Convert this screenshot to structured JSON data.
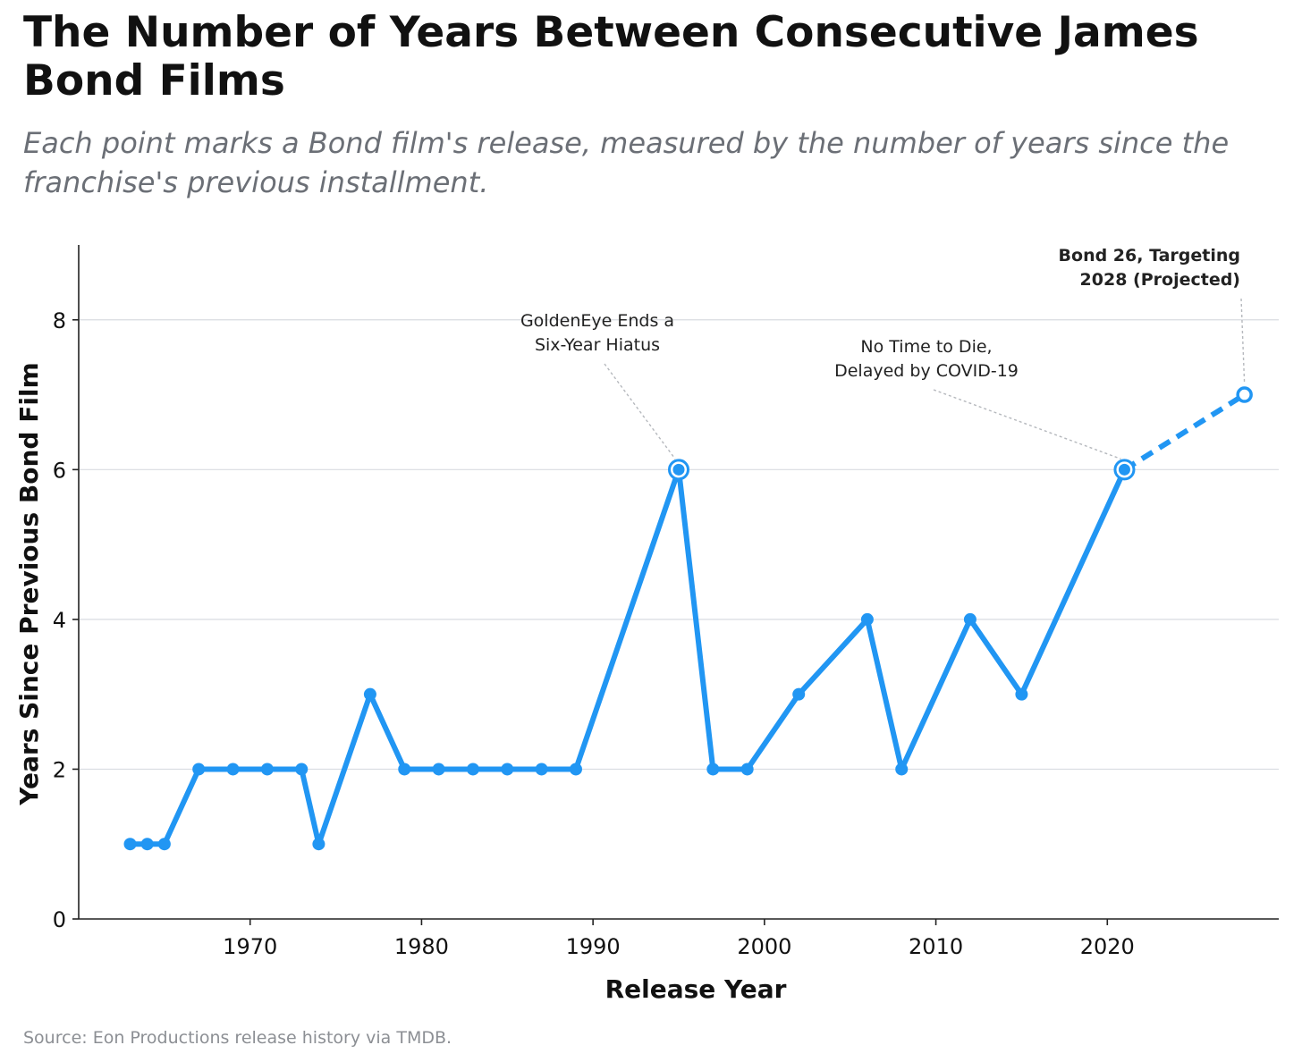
{
  "chart_data": {
    "type": "line",
    "title": "The Number of Years Between Consecutive James Bond Films",
    "subtitle": "Each point marks a Bond film's release, measured by the number of years since the franchise's previous installment.",
    "xlabel": "Release Year",
    "ylabel": "Years Since Previous Bond Film",
    "source": "Source: Eon Productions release history via TMDB.",
    "xlim": [
      1960,
      2030
    ],
    "ylim": [
      0,
      9
    ],
    "x_ticks": [
      1970,
      1980,
      1990,
      2000,
      2010,
      2020
    ],
    "y_ticks": [
      0,
      2,
      4,
      6,
      8
    ],
    "grid": "horizontal",
    "colors": {
      "line": "#2196f3",
      "grid": "#d9dce1",
      "leader": "#b5b8bd"
    },
    "series": [
      {
        "x": [
          1963,
          1964,
          1965,
          1967,
          1969,
          1971,
          1973,
          1974,
          1977,
          1979,
          1981,
          1983,
          1985,
          1987,
          1989,
          1995,
          1997,
          1999,
          2002,
          2006,
          2008,
          2012,
          2015,
          2021
        ],
        "y": [
          1,
          1,
          1,
          2,
          2,
          2,
          2,
          1,
          3,
          2,
          2,
          2,
          2,
          2,
          2,
          6,
          2,
          2,
          3,
          4,
          2,
          4,
          3,
          6
        ],
        "style": "solid"
      },
      {
        "x": [
          2021,
          2028
        ],
        "y": [
          6,
          7
        ],
        "style": "dashed"
      }
    ],
    "annotations": [
      {
        "lines": [
          "GoldenEye Ends a",
          "Six-Year Hiatus"
        ],
        "x": 1995,
        "y": 6,
        "weight": "normal"
      },
      {
        "lines": [
          "No Time to Die,",
          "Delayed by COVID-19"
        ],
        "x": 2021,
        "y": 6,
        "weight": "normal"
      },
      {
        "lines": [
          "Bond 26, Targeting",
          "2028 (Projected)"
        ],
        "x": 2028,
        "y": 7,
        "weight": "bold"
      }
    ]
  }
}
